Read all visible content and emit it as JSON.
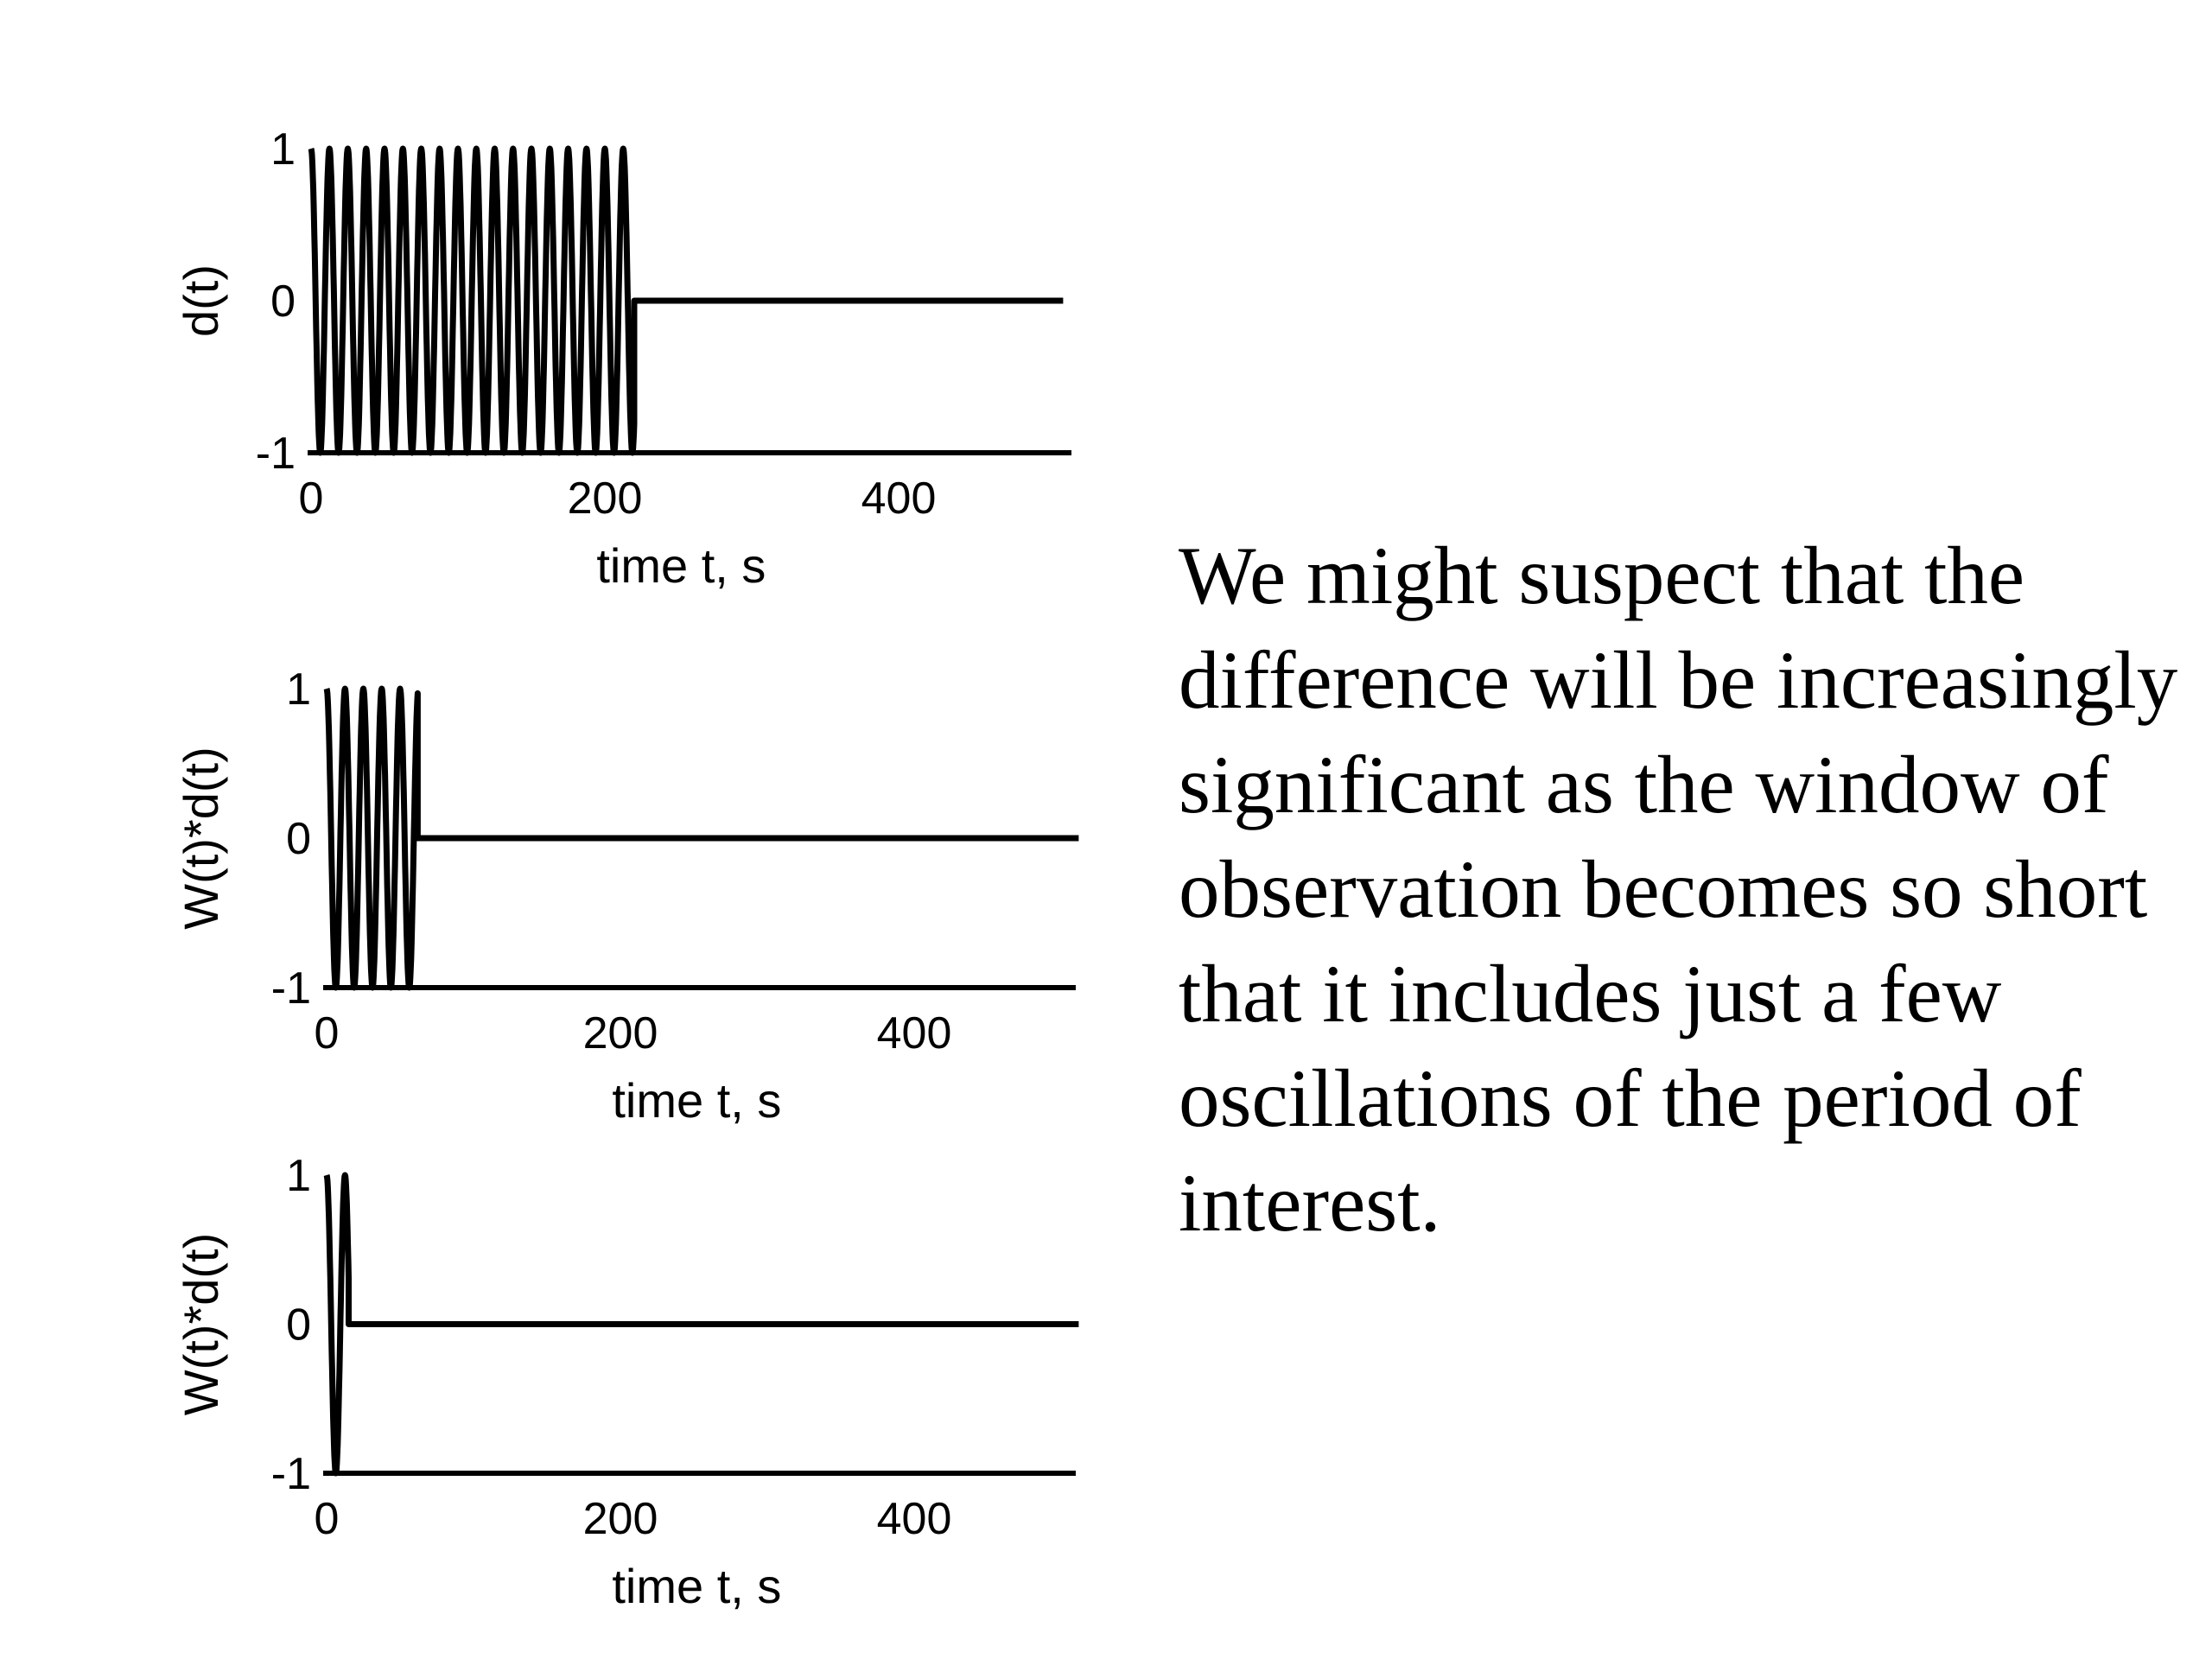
{
  "text": {
    "body": "We might suspect that the difference will be increasingly significant as the window of observation becomes so short that it includes just a few oscillations of the period of interest."
  },
  "chart_data": [
    {
      "type": "line",
      "ylabel": "d(t)",
      "xlabel": "time t, s",
      "xlim": [
        0,
        512
      ],
      "ylim": [
        -1,
        1
      ],
      "xticks": [
        0,
        200,
        400
      ],
      "yticks": [
        -1,
        0,
        1
      ],
      "series": [
        {
          "signal": "cosine",
          "period_s": 12.5,
          "amplitude": 1,
          "window_start_s": 0,
          "window_end_s": 220,
          "value_outside_window": 0
        }
      ]
    },
    {
      "type": "line",
      "ylabel": "W(t)*d(t)",
      "xlabel": "time t, s",
      "xlim": [
        0,
        512
      ],
      "ylim": [
        -1,
        1
      ],
      "xticks": [
        0,
        200,
        400
      ],
      "yticks": [
        -1,
        0,
        1
      ],
      "series": [
        {
          "signal": "cosine",
          "period_s": 12.5,
          "amplitude": 1,
          "window_start_s": 0,
          "window_end_s": 62,
          "value_outside_window": 0
        }
      ]
    },
    {
      "type": "line",
      "ylabel": "W(t)*d(t)",
      "xlabel": "time t, s",
      "xlim": [
        0,
        512
      ],
      "ylim": [
        -1,
        1
      ],
      "xticks": [
        0,
        200,
        400
      ],
      "yticks": [
        -1,
        0,
        1
      ],
      "series": [
        {
          "signal": "cosine",
          "period_s": 12.5,
          "amplitude": 1,
          "window_start_s": 0,
          "window_end_s": 15,
          "value_outside_window": 0
        }
      ]
    }
  ]
}
